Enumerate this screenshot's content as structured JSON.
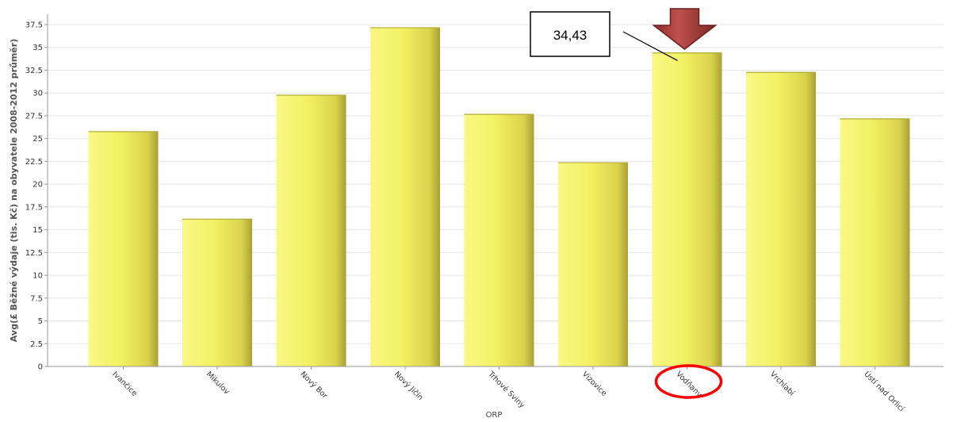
{
  "chart_data": {
    "type": "bar",
    "categories": [
      "Ivančice",
      "Mikulov",
      "Nový Bor",
      "Nový Jičín",
      "Trhové Sviny",
      "Vizovice",
      "Vodňany",
      "Vrchlabí",
      "Ústí nad Orlicí"
    ],
    "values": [
      25.8,
      16.2,
      29.8,
      37.2,
      27.7,
      22.4,
      34.43,
      32.3,
      27.2
    ],
    "ylabel": "Avg(£ Běžné výdaje (tis. Kč) na obyvatele 2008-2012 průměr)",
    "xlabel": "ORP",
    "ylim": [
      0,
      37.5
    ],
    "yticks": [
      "0",
      "2.5",
      "5",
      "7.5",
      "10",
      "12.5",
      "15",
      "17.5",
      "20",
      "22.5",
      "25",
      "27.5",
      "30",
      "32.5",
      "35",
      "37.5"
    ],
    "grid": true,
    "bar_color": "#f0ee60",
    "annotation": {
      "text": "34,43",
      "category": "Vodňany",
      "arrow_color": "#c0504d",
      "circle_color": "#ff0000"
    }
  }
}
